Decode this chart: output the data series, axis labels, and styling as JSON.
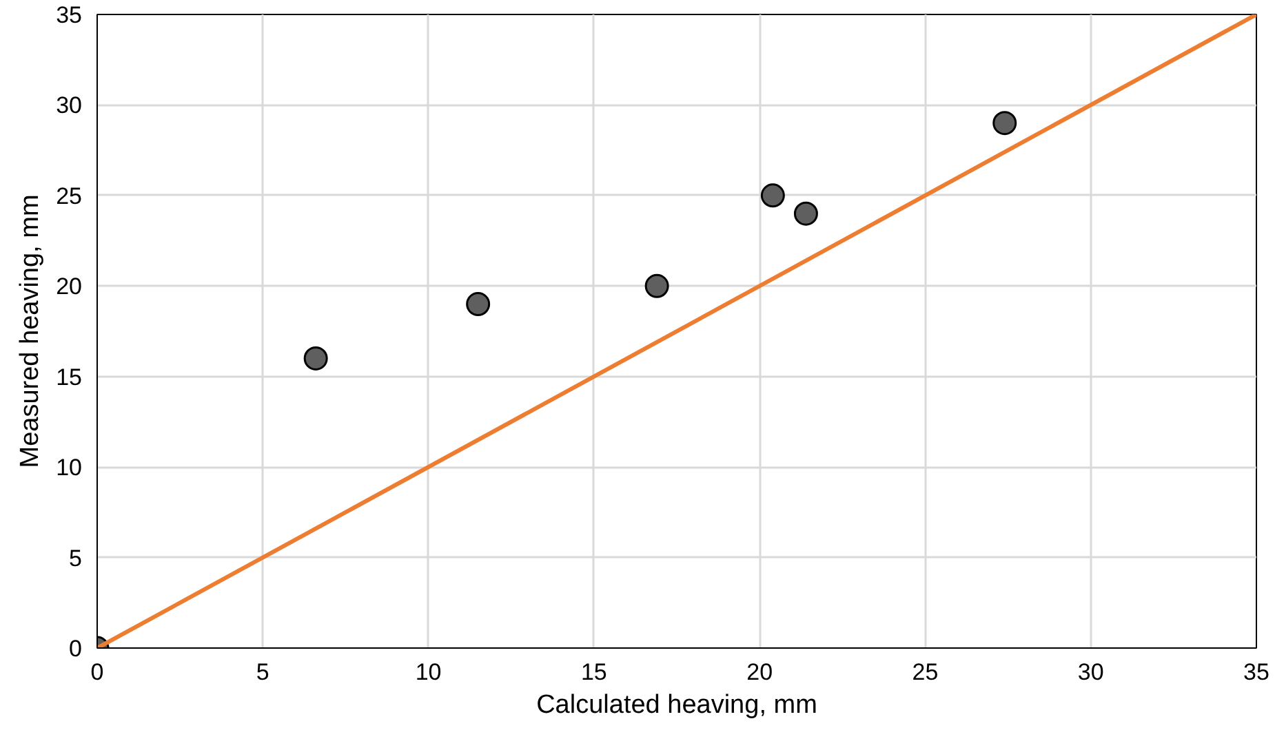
{
  "chart_data": {
    "type": "scatter",
    "xlabel": "Calculated heaving, mm",
    "ylabel": "Measured heaving, mm",
    "xlim": [
      0,
      35
    ],
    "ylim": [
      0,
      35
    ],
    "xticks": [
      0,
      5,
      10,
      15,
      20,
      25,
      30,
      35
    ],
    "yticks": [
      0,
      5,
      10,
      15,
      20,
      25,
      30,
      35
    ],
    "grid": true,
    "series": [
      {
        "color": "#5f5f5f",
        "marker": "circle",
        "x": [
          0,
          6.6,
          11.5,
          16.9,
          20.4,
          21.4,
          27.4
        ],
        "values": [
          0,
          16,
          19,
          20,
          25,
          24,
          29
        ]
      },
      {
        "type": "line",
        "color": "#ed7d31",
        "marker": "none",
        "x": [
          0,
          35
        ],
        "values": [
          0,
          35
        ]
      }
    ]
  }
}
